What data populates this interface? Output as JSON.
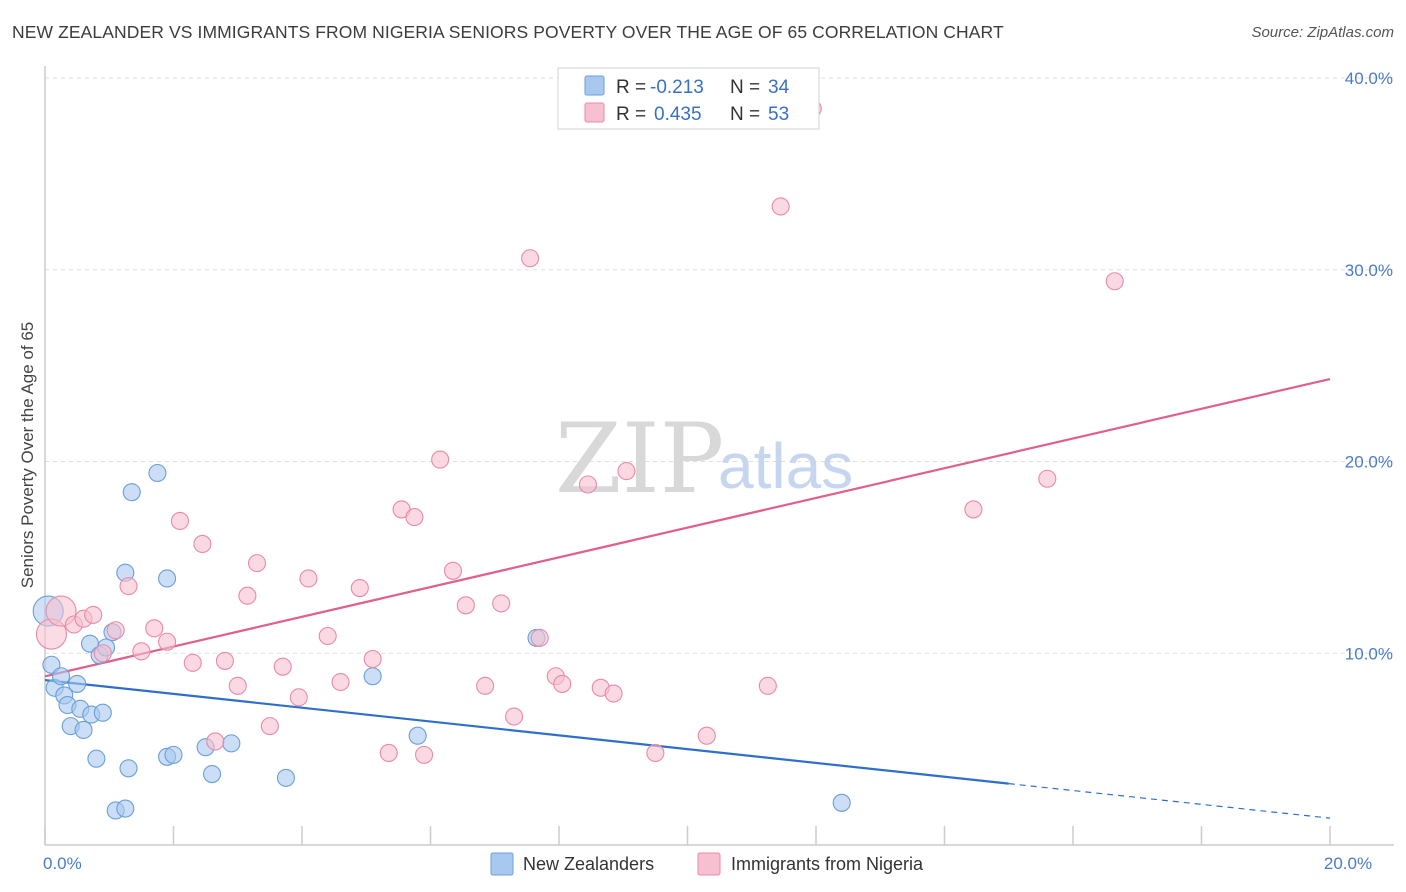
{
  "title": "NEW ZEALANDER VS IMMIGRANTS FROM NIGERIA SENIORS POVERTY OVER THE AGE OF 65 CORRELATION CHART",
  "source": "Source: ZipAtlas.com",
  "watermark": {
    "zip": "ZIP",
    "atlas": "atlas"
  },
  "colors": {
    "blue_fill": "#a9c8f0",
    "blue_stroke": "#6a9fd8",
    "blue_line": "#2f6fcc",
    "pink_fill": "#f7c0d0",
    "pink_stroke": "#e98aa8",
    "pink_line": "#e0608a",
    "grid": "#dddddd",
    "axis": "#cccccc",
    "tick_text": "#4a7cc4"
  },
  "legend": {
    "rows": [
      {
        "r_label": "R =",
        "r_value": "-0.213",
        "n_label": "N =",
        "n_value": "34"
      },
      {
        "r_label": "R =",
        "r_value": "0.435",
        "n_label": "N =",
        "n_value": "53"
      }
    ]
  },
  "chart_data": {
    "type": "scatter",
    "title": "NEW ZEALANDER VS IMMIGRANTS FROM NIGERIA SENIORS POVERTY OVER THE AGE OF 65 CORRELATION CHART",
    "xlabel": "",
    "ylabel": "Seniors Poverty Over the Age of 65",
    "xlim": [
      0,
      20
    ],
    "ylim": [
      0,
      40
    ],
    "x_ticks": [
      {
        "value": 0,
        "label": "0.0%"
      },
      {
        "value": 20,
        "label": "20.0%"
      }
    ],
    "x_minor_ticks": [
      0,
      2,
      4,
      6,
      8,
      10,
      12,
      14,
      16,
      18,
      20
    ],
    "y_ticks": [
      {
        "value": 10,
        "label": "10.0%"
      },
      {
        "value": 20,
        "label": "20.0%"
      },
      {
        "value": 30,
        "label": "30.0%"
      },
      {
        "value": 40,
        "label": "40.0%"
      }
    ],
    "grid": true,
    "legend_position": "top-center",
    "series": [
      {
        "name": "New Zealanders",
        "color": "blue",
        "trend": {
          "x0": 0,
          "y0": 8.6,
          "x1": 15.0,
          "y1": 3.2,
          "dash_to_x": 20,
          "dash_to_y": 1.4
        },
        "points": [
          {
            "x": 0.05,
            "y": 12.2,
            "big": true
          },
          {
            "x": 0.1,
            "y": 9.4
          },
          {
            "x": 0.15,
            "y": 8.2
          },
          {
            "x": 0.25,
            "y": 8.8
          },
          {
            "x": 0.3,
            "y": 7.8
          },
          {
            "x": 0.35,
            "y": 7.3
          },
          {
            "x": 0.4,
            "y": 6.2
          },
          {
            "x": 0.5,
            "y": 8.4
          },
          {
            "x": 0.55,
            "y": 7.1
          },
          {
            "x": 0.6,
            "y": 6.0
          },
          {
            "x": 0.7,
            "y": 10.5
          },
          {
            "x": 0.72,
            "y": 6.8
          },
          {
            "x": 0.8,
            "y": 4.5
          },
          {
            "x": 0.85,
            "y": 9.9
          },
          {
            "x": 0.9,
            "y": 6.9
          },
          {
            "x": 0.95,
            "y": 10.3
          },
          {
            "x": 1.05,
            "y": 11.1
          },
          {
            "x": 1.1,
            "y": 1.8
          },
          {
            "x": 1.25,
            "y": 1.9
          },
          {
            "x": 1.3,
            "y": 4.0
          },
          {
            "x": 1.35,
            "y": 18.4
          },
          {
            "x": 1.9,
            "y": 4.6
          },
          {
            "x": 2.0,
            "y": 4.7
          },
          {
            "x": 1.9,
            "y": 13.9
          },
          {
            "x": 1.75,
            "y": 19.4
          },
          {
            "x": 1.25,
            "y": 14.2
          },
          {
            "x": 2.5,
            "y": 5.1
          },
          {
            "x": 2.6,
            "y": 3.7
          },
          {
            "x": 2.9,
            "y": 5.3
          },
          {
            "x": 3.75,
            "y": 3.5
          },
          {
            "x": 5.1,
            "y": 8.8
          },
          {
            "x": 5.8,
            "y": 5.7
          },
          {
            "x": 7.65,
            "y": 10.8
          },
          {
            "x": 12.4,
            "y": 2.2
          }
        ]
      },
      {
        "name": "Immigrants from Nigeria",
        "color": "pink",
        "trend": {
          "x0": 0,
          "y0": 8.8,
          "x1": 20,
          "y1": 24.3
        },
        "points": [
          {
            "x": 0.1,
            "y": 11.0,
            "big": true
          },
          {
            "x": 0.25,
            "y": 12.2,
            "big": true
          },
          {
            "x": 0.45,
            "y": 11.5
          },
          {
            "x": 0.6,
            "y": 11.8
          },
          {
            "x": 0.75,
            "y": 12.0
          },
          {
            "x": 0.9,
            "y": 10.0
          },
          {
            "x": 1.1,
            "y": 11.2
          },
          {
            "x": 1.3,
            "y": 13.5
          },
          {
            "x": 1.5,
            "y": 10.1
          },
          {
            "x": 1.7,
            "y": 11.3
          },
          {
            "x": 1.9,
            "y": 10.6
          },
          {
            "x": 2.1,
            "y": 16.9
          },
          {
            "x": 2.3,
            "y": 9.5
          },
          {
            "x": 2.45,
            "y": 15.7
          },
          {
            "x": 2.65,
            "y": 5.4
          },
          {
            "x": 2.8,
            "y": 9.6
          },
          {
            "x": 3.0,
            "y": 8.3
          },
          {
            "x": 3.15,
            "y": 13.0
          },
          {
            "x": 3.3,
            "y": 14.7
          },
          {
            "x": 3.5,
            "y": 6.2
          },
          {
            "x": 3.7,
            "y": 9.3
          },
          {
            "x": 3.95,
            "y": 7.7
          },
          {
            "x": 4.1,
            "y": 13.9
          },
          {
            "x": 4.4,
            "y": 10.9
          },
          {
            "x": 4.6,
            "y": 8.5
          },
          {
            "x": 4.9,
            "y": 13.4
          },
          {
            "x": 5.1,
            "y": 9.7
          },
          {
            "x": 5.35,
            "y": 4.8
          },
          {
            "x": 5.55,
            "y": 17.5
          },
          {
            "x": 5.75,
            "y": 17.1
          },
          {
            "x": 5.9,
            "y": 4.7
          },
          {
            "x": 6.15,
            "y": 20.1
          },
          {
            "x": 6.35,
            "y": 14.3
          },
          {
            "x": 6.55,
            "y": 12.5
          },
          {
            "x": 6.85,
            "y": 8.3
          },
          {
            "x": 7.1,
            "y": 12.6
          },
          {
            "x": 7.3,
            "y": 6.7
          },
          {
            "x": 7.55,
            "y": 30.6
          },
          {
            "x": 7.7,
            "y": 10.8
          },
          {
            "x": 7.95,
            "y": 8.8
          },
          {
            "x": 8.05,
            "y": 8.4
          },
          {
            "x": 8.45,
            "y": 18.8
          },
          {
            "x": 8.65,
            "y": 8.2
          },
          {
            "x": 8.85,
            "y": 7.9
          },
          {
            "x": 9.05,
            "y": 19.5
          },
          {
            "x": 9.5,
            "y": 4.8
          },
          {
            "x": 10.3,
            "y": 5.7
          },
          {
            "x": 11.25,
            "y": 8.3
          },
          {
            "x": 11.45,
            "y": 33.3
          },
          {
            "x": 11.95,
            "y": 38.4
          },
          {
            "x": 14.45,
            "y": 17.5
          },
          {
            "x": 15.6,
            "y": 19.1
          },
          {
            "x": 16.65,
            "y": 29.4
          }
        ]
      }
    ]
  }
}
